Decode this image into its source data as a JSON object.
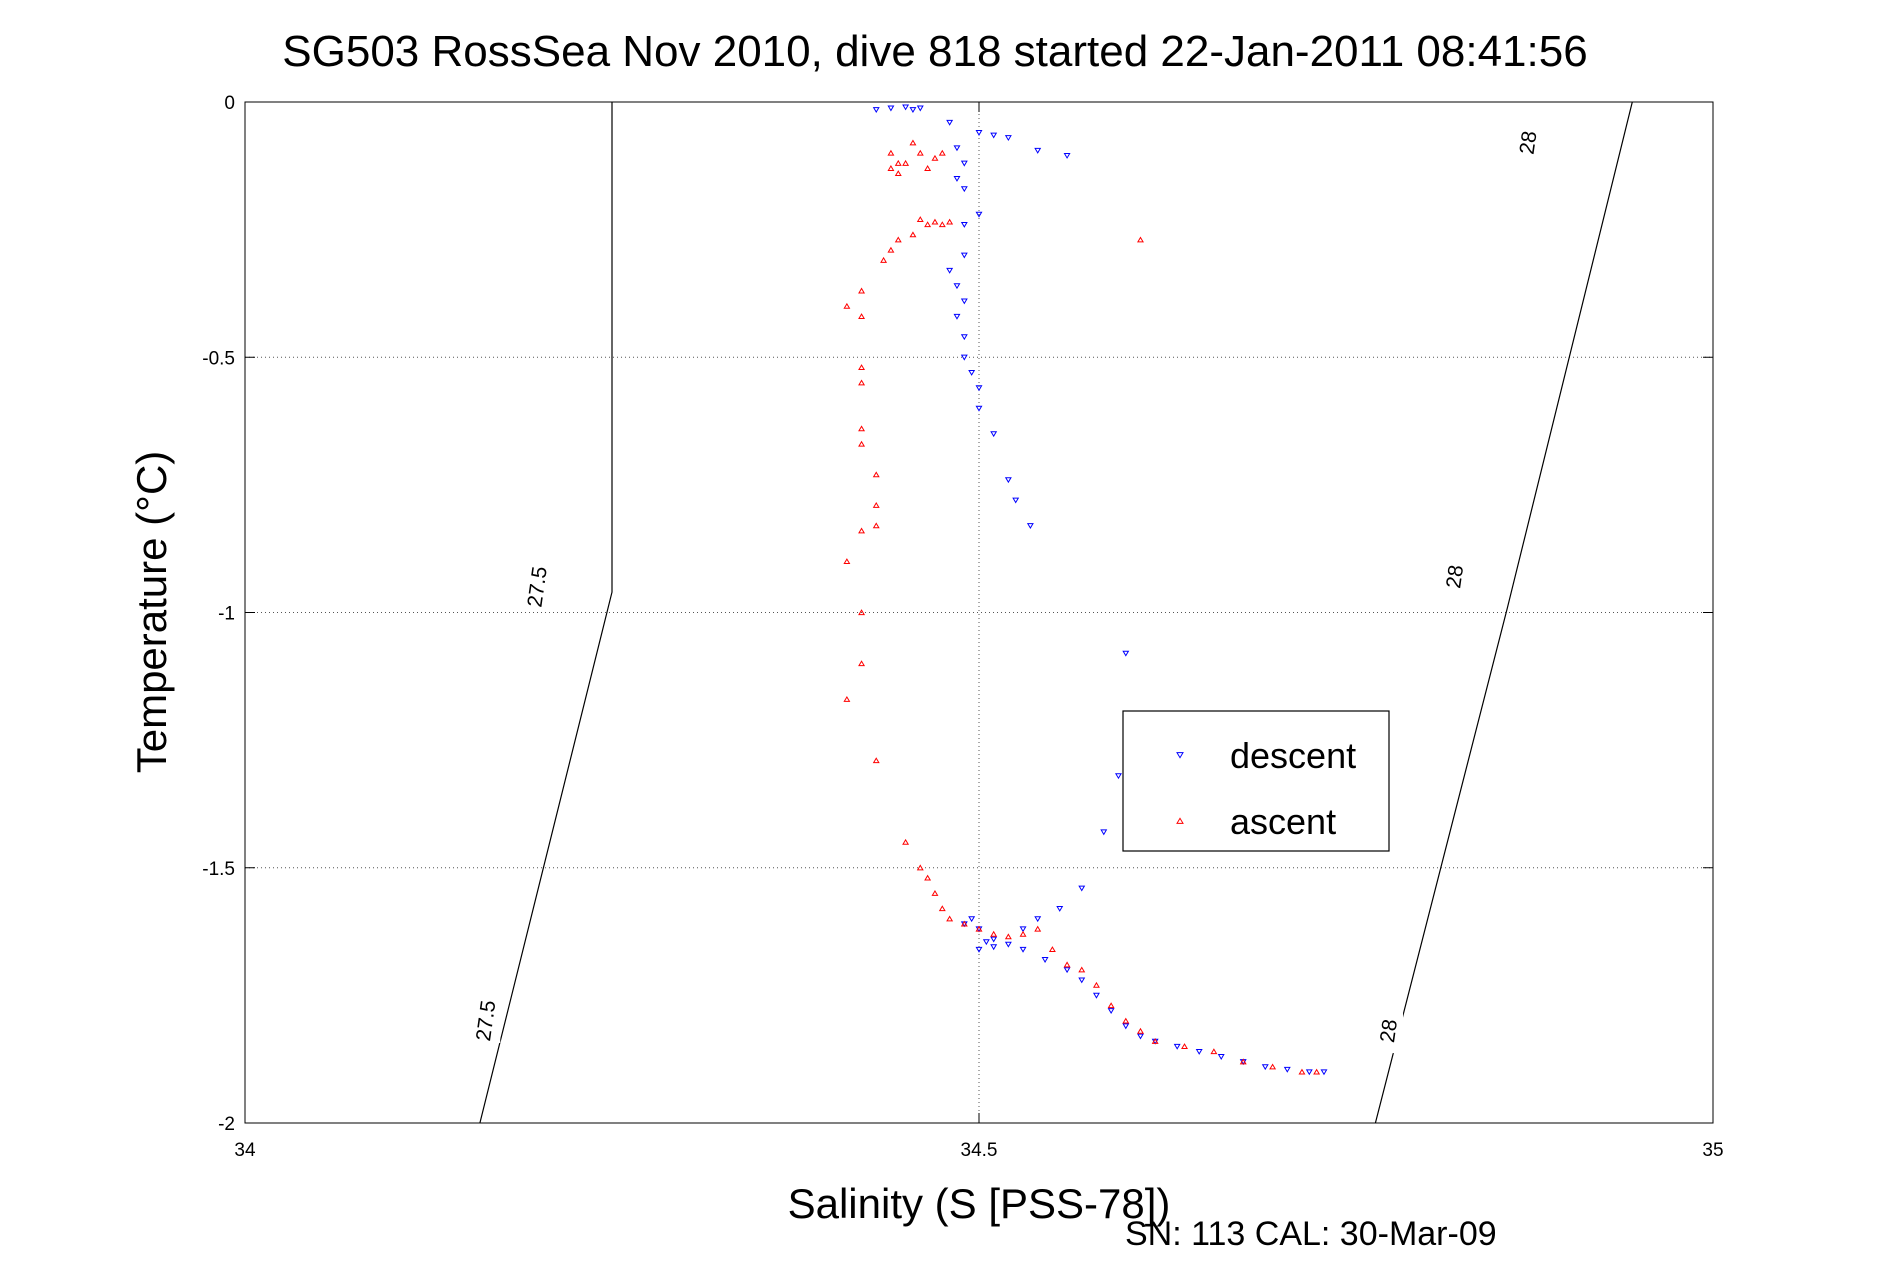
{
  "chart_data": {
    "type": "scatter",
    "title": "SG503 RossSea Nov 2010, dive 818 started 22-Jan-2011 08:41:56",
    "xlabel": "Salinity (S [PSS-78])",
    "ylabel": "Temperature (°C)",
    "xlim": [
      34,
      35
    ],
    "ylim": [
      -2,
      0
    ],
    "xticks": [
      34,
      34.5,
      35
    ],
    "xtick_labels": [
      "34",
      "34.5",
      "35"
    ],
    "yticks": [
      0,
      -0.5,
      -1,
      -1.5,
      -2
    ],
    "ytick_labels": [
      "0",
      "-0.5",
      "-1",
      "-1.5",
      "-2"
    ],
    "grid": true,
    "legend_position": "right-center",
    "footnote": "SN: 113  CAL: 30-Mar-09",
    "density_contours": [
      {
        "label": "27.5",
        "points": [
          [
            34.16,
            -2.0
          ],
          [
            34.25,
            -0.96
          ],
          [
            34.25,
            0.0
          ]
        ],
        "label_positions": [
          [
            34.165,
            -1.8
          ],
          [
            34.2,
            -0.95
          ]
        ]
      },
      {
        "label": "28",
        "points": [
          [
            34.77,
            -2.0
          ],
          [
            34.86,
            -0.99
          ],
          [
            34.945,
            0.0
          ]
        ],
        "label_positions": [
          [
            34.78,
            -1.82
          ],
          [
            34.825,
            -0.93
          ],
          [
            34.875,
            -0.08
          ]
        ]
      }
    ],
    "series": [
      {
        "name": "descent",
        "color": "#0000ff",
        "marker": "triangle-down",
        "points": [
          [
            34.43,
            -0.015
          ],
          [
            34.44,
            -0.012
          ],
          [
            34.45,
            -0.01
          ],
          [
            34.46,
            -0.012
          ],
          [
            34.455,
            -0.015
          ],
          [
            34.48,
            -0.04
          ],
          [
            34.485,
            -0.09
          ],
          [
            34.49,
            -0.12
          ],
          [
            34.485,
            -0.15
          ],
          [
            34.49,
            -0.17
          ],
          [
            34.5,
            -0.06
          ],
          [
            34.51,
            -0.065
          ],
          [
            34.52,
            -0.07
          ],
          [
            34.54,
            -0.095
          ],
          [
            34.56,
            -0.105
          ],
          [
            34.49,
            -0.24
          ],
          [
            34.5,
            -0.22
          ],
          [
            34.49,
            -0.3
          ],
          [
            34.48,
            -0.33
          ],
          [
            34.485,
            -0.36
          ],
          [
            34.49,
            -0.39
          ],
          [
            34.485,
            -0.42
          ],
          [
            34.49,
            -0.46
          ],
          [
            34.49,
            -0.5
          ],
          [
            34.495,
            -0.53
          ],
          [
            34.5,
            -0.56
          ],
          [
            34.5,
            -0.6
          ],
          [
            34.51,
            -0.65
          ],
          [
            34.52,
            -0.74
          ],
          [
            34.525,
            -0.78
          ],
          [
            34.535,
            -0.83
          ],
          [
            34.6,
            -1.08
          ],
          [
            34.595,
            -1.32
          ],
          [
            34.585,
            -1.43
          ],
          [
            34.57,
            -1.54
          ],
          [
            34.555,
            -1.58
          ],
          [
            34.54,
            -1.6
          ],
          [
            34.53,
            -1.62
          ],
          [
            34.51,
            -1.64
          ],
          [
            34.5,
            -1.66
          ],
          [
            34.49,
            -1.61
          ],
          [
            34.495,
            -1.6
          ],
          [
            34.5,
            -1.62
          ],
          [
            34.505,
            -1.645
          ],
          [
            34.51,
            -1.655
          ],
          [
            34.52,
            -1.65
          ],
          [
            34.53,
            -1.66
          ],
          [
            34.545,
            -1.68
          ],
          [
            34.56,
            -1.7
          ],
          [
            34.57,
            -1.72
          ],
          [
            34.58,
            -1.75
          ],
          [
            34.59,
            -1.78
          ],
          [
            34.6,
            -1.81
          ],
          [
            34.61,
            -1.83
          ],
          [
            34.62,
            -1.84
          ],
          [
            34.635,
            -1.85
          ],
          [
            34.65,
            -1.86
          ],
          [
            34.665,
            -1.87
          ],
          [
            34.68,
            -1.88
          ],
          [
            34.695,
            -1.89
          ],
          [
            34.71,
            -1.895
          ],
          [
            34.725,
            -1.9
          ],
          [
            34.735,
            -1.9
          ]
        ]
      },
      {
        "name": "ascent",
        "color": "#ff0000",
        "marker": "triangle-up",
        "points": [
          [
            34.44,
            -0.1
          ],
          [
            34.445,
            -0.12
          ],
          [
            34.44,
            -0.13
          ],
          [
            34.445,
            -0.14
          ],
          [
            34.45,
            -0.12
          ],
          [
            34.455,
            -0.08
          ],
          [
            34.46,
            -0.1
          ],
          [
            34.465,
            -0.13
          ],
          [
            34.47,
            -0.11
          ],
          [
            34.475,
            -0.1
          ],
          [
            34.46,
            -0.23
          ],
          [
            34.465,
            -0.24
          ],
          [
            34.47,
            -0.235
          ],
          [
            34.475,
            -0.24
          ],
          [
            34.48,
            -0.235
          ],
          [
            34.455,
            -0.26
          ],
          [
            34.445,
            -0.27
          ],
          [
            34.44,
            -0.29
          ],
          [
            34.435,
            -0.31
          ],
          [
            34.42,
            -0.37
          ],
          [
            34.41,
            -0.4
          ],
          [
            34.42,
            -0.42
          ],
          [
            34.42,
            -0.52
          ],
          [
            34.42,
            -0.55
          ],
          [
            34.42,
            -0.64
          ],
          [
            34.42,
            -0.67
          ],
          [
            34.43,
            -0.73
          ],
          [
            34.43,
            -0.79
          ],
          [
            34.43,
            -0.83
          ],
          [
            34.42,
            -0.84
          ],
          [
            34.41,
            -0.9
          ],
          [
            34.42,
            -1.0
          ],
          [
            34.42,
            -1.1
          ],
          [
            34.41,
            -1.17
          ],
          [
            34.43,
            -1.29
          ],
          [
            34.45,
            -1.45
          ],
          [
            34.46,
            -1.5
          ],
          [
            34.465,
            -1.52
          ],
          [
            34.47,
            -1.55
          ],
          [
            34.475,
            -1.58
          ],
          [
            34.48,
            -1.6
          ],
          [
            34.49,
            -1.61
          ],
          [
            34.5,
            -1.62
          ],
          [
            34.51,
            -1.63
          ],
          [
            34.52,
            -1.635
          ],
          [
            34.53,
            -1.63
          ],
          [
            34.54,
            -1.62
          ],
          [
            34.55,
            -1.66
          ],
          [
            34.56,
            -1.69
          ],
          [
            34.57,
            -1.7
          ],
          [
            34.58,
            -1.73
          ],
          [
            34.59,
            -1.77
          ],
          [
            34.6,
            -1.8
          ],
          [
            34.61,
            -1.82
          ],
          [
            34.62,
            -1.84
          ],
          [
            34.64,
            -1.85
          ],
          [
            34.66,
            -1.86
          ],
          [
            34.68,
            -1.88
          ],
          [
            34.7,
            -1.89
          ],
          [
            34.72,
            -1.9
          ],
          [
            34.73,
            -1.9
          ],
          [
            34.61,
            -0.27
          ]
        ]
      }
    ]
  }
}
